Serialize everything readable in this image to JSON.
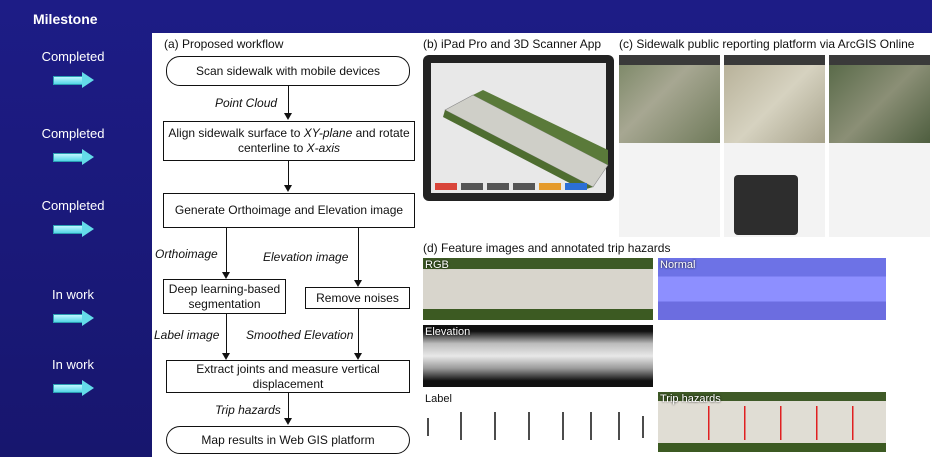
{
  "milestone": {
    "title": "Milestone",
    "items": [
      "Completed",
      "Completed",
      "Completed",
      "In work",
      "In work"
    ]
  },
  "workflow": {
    "label": "(a) Proposed workflow",
    "steps": [
      "Scan sidewalk with mobile devices",
      "Align sidewalk surface to XY-plane and rotate centerline to X-axis",
      "Generate Orthoimage and Elevation image",
      "Deep learning-based segmentation",
      "Remove noises",
      "Extract joints and measure vertical displacement",
      "Map results in Web GIS platform"
    ],
    "align": {
      "plane": "XY-plane",
      "axis": "X-axis"
    },
    "edges": [
      "Point Cloud",
      "Orthoimage",
      "Elevation image",
      "Label image",
      "Smoothed Elevation",
      "Trip hazards"
    ]
  },
  "ipad": {
    "label": "(b) iPad Pro and 3D Scanner App"
  },
  "arcgis": {
    "label": "(c) Sidewalk public reporting platform via ArcGIS Online"
  },
  "features": {
    "label": "(d) Feature images and annotated trip hazards",
    "images": [
      "RGB",
      "Normal",
      "Elevation",
      "Label",
      "Trip hazards"
    ]
  }
}
